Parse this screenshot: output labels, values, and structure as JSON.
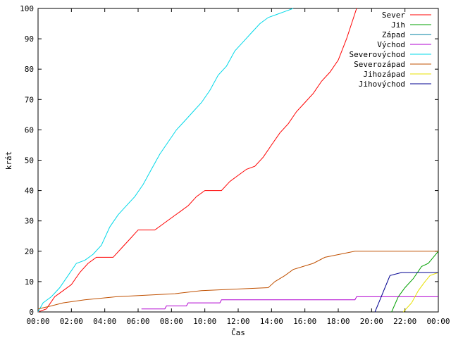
{
  "chart_data": {
    "type": "line",
    "xlabel": "Čas",
    "ylabel": "krát",
    "x_ticks": [
      "00:00",
      "02:00",
      "04:00",
      "06:00",
      "08:00",
      "10:00",
      "12:00",
      "14:00",
      "16:00",
      "18:00",
      "20:00",
      "22:00",
      "00:00"
    ],
    "x_range_hours": [
      0,
      24
    ],
    "ylim": [
      0,
      100
    ],
    "y_ticks": [
      0,
      10,
      20,
      30,
      40,
      50,
      60,
      70,
      80,
      90,
      100
    ],
    "grid": false,
    "legend_position": "top-right",
    "series": [
      {
        "name": "Sever",
        "color": "#ff0000",
        "points": [
          [
            0,
            0
          ],
          [
            0.5,
            1
          ],
          [
            1.0,
            5
          ],
          [
            1.5,
            7
          ],
          [
            2.0,
            9
          ],
          [
            2.5,
            13
          ],
          [
            3.0,
            16
          ],
          [
            3.5,
            18
          ],
          [
            4.5,
            18
          ],
          [
            5.0,
            21
          ],
          [
            5.5,
            24
          ],
          [
            6.0,
            27
          ],
          [
            7.0,
            27
          ],
          [
            7.5,
            29
          ],
          [
            8.0,
            31
          ],
          [
            8.5,
            33
          ],
          [
            9.0,
            35
          ],
          [
            9.5,
            38
          ],
          [
            10.0,
            40
          ],
          [
            11.0,
            40
          ],
          [
            11.5,
            43
          ],
          [
            12.0,
            45
          ],
          [
            12.5,
            47
          ],
          [
            13.0,
            48
          ],
          [
            13.5,
            51
          ],
          [
            14.0,
            55
          ],
          [
            14.5,
            59
          ],
          [
            15.0,
            62
          ],
          [
            15.5,
            66
          ],
          [
            16.0,
            69
          ],
          [
            16.5,
            72
          ],
          [
            17.0,
            76
          ],
          [
            17.5,
            79
          ],
          [
            18.0,
            83
          ],
          [
            18.5,
            90
          ],
          [
            18.8,
            95
          ],
          [
            19.1,
            100
          ]
        ]
      },
      {
        "name": "Jih",
        "color": "#00a000",
        "points": [
          [
            21.2,
            0
          ],
          [
            21.6,
            5
          ],
          [
            22.0,
            8
          ],
          [
            22.5,
            11
          ],
          [
            23.0,
            15
          ],
          [
            23.4,
            16
          ],
          [
            23.7,
            18
          ],
          [
            24.0,
            20
          ]
        ]
      },
      {
        "name": "Západ",
        "color": "#0080a0",
        "points": []
      },
      {
        "name": "Východ",
        "color": "#b000d0",
        "points": [
          [
            6.2,
            1
          ],
          [
            7.6,
            1
          ],
          [
            7.7,
            2
          ],
          [
            8.9,
            2
          ],
          [
            9.0,
            3
          ],
          [
            10.9,
            3
          ],
          [
            11.0,
            4
          ],
          [
            19.0,
            4
          ],
          [
            19.1,
            5
          ],
          [
            24.0,
            5
          ]
        ]
      },
      {
        "name": "Severovýchod",
        "color": "#00d8e8",
        "points": [
          [
            0,
            0
          ],
          [
            0.3,
            3
          ],
          [
            0.8,
            5
          ],
          [
            1.3,
            8
          ],
          [
            1.8,
            12
          ],
          [
            2.3,
            16
          ],
          [
            2.8,
            17
          ],
          [
            3.3,
            19
          ],
          [
            3.8,
            22
          ],
          [
            4.3,
            28
          ],
          [
            4.8,
            32
          ],
          [
            5.3,
            35
          ],
          [
            5.8,
            38
          ],
          [
            6.3,
            42
          ],
          [
            6.8,
            47
          ],
          [
            7.3,
            52
          ],
          [
            7.8,
            56
          ],
          [
            8.3,
            60
          ],
          [
            8.8,
            63
          ],
          [
            9.3,
            66
          ],
          [
            9.8,
            69
          ],
          [
            10.3,
            73
          ],
          [
            10.8,
            78
          ],
          [
            11.3,
            81
          ],
          [
            11.8,
            86
          ],
          [
            12.3,
            89
          ],
          [
            12.8,
            92
          ],
          [
            13.3,
            95
          ],
          [
            13.8,
            97
          ],
          [
            14.3,
            98
          ],
          [
            14.8,
            99
          ],
          [
            15.3,
            100
          ]
        ]
      },
      {
        "name": "Severozápad",
        "color": "#c05000",
        "points": [
          [
            0,
            1
          ],
          [
            0.8,
            2
          ],
          [
            1.5,
            3
          ],
          [
            2.8,
            4
          ],
          [
            4.7,
            5
          ],
          [
            8.2,
            6
          ],
          [
            9.8,
            7
          ],
          [
            13.8,
            8
          ],
          [
            14.2,
            10
          ],
          [
            14.8,
            12
          ],
          [
            15.3,
            14
          ],
          [
            16.5,
            16
          ],
          [
            17.2,
            18
          ],
          [
            19.0,
            20
          ],
          [
            24.0,
            20
          ]
        ]
      },
      {
        "name": "Jihozápad",
        "color": "#e8e000",
        "points": [
          [
            21.9,
            0
          ],
          [
            22.4,
            3
          ],
          [
            22.8,
            7
          ],
          [
            23.2,
            10
          ],
          [
            23.5,
            12
          ],
          [
            24.0,
            13
          ]
        ]
      },
      {
        "name": "Jihovýchod",
        "color": "#000090",
        "points": [
          [
            20.2,
            0
          ],
          [
            20.5,
            4
          ],
          [
            20.8,
            8
          ],
          [
            21.1,
            12
          ],
          [
            21.8,
            13
          ],
          [
            24.0,
            13
          ]
        ]
      }
    ]
  }
}
